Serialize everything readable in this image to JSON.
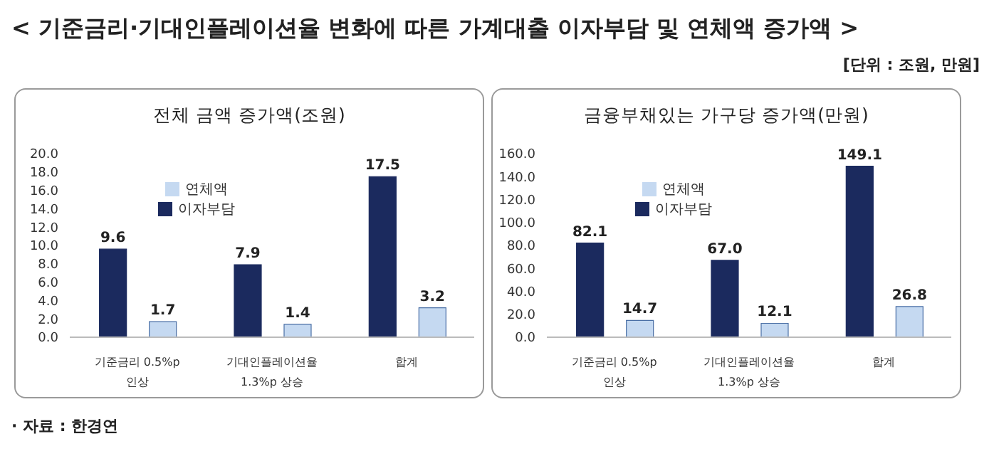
{
  "chart_data": [
    {
      "type": "bar",
      "title": "전체 금액 증가액(조원)",
      "annotations": [
        "< 기준금리·기대인플레이션율 변화에 따른 가계대출 이자부담 및 연체액 증가액 >",
        "[단위 : 조원, 만원]",
        "· 자료 : 한경연"
      ],
      "categories": [
        "기준금리 0.5%p 인상",
        "기대인플레이션율 1.3%p 상승",
        "합계"
      ],
      "series": [
        {
          "name": "이자부담",
          "color": "#1b2a5e",
          "values": [
            9.6,
            7.9,
            17.5
          ],
          "value_labels": [
            "9.6",
            "7.9",
            "17.5"
          ]
        },
        {
          "name": "연체액",
          "color": "#c5d9f1",
          "values": [
            1.7,
            1.4,
            3.2
          ],
          "value_labels": [
            "1.7",
            "1.4",
            "3.2"
          ]
        }
      ],
      "ylim": [
        0,
        20
      ],
      "yticks": [
        {
          "value": 0,
          "label": "0.0"
        },
        {
          "value": 2,
          "label": "2.0"
        },
        {
          "value": 4,
          "label": "4.0"
        },
        {
          "value": 6,
          "label": "6.0"
        },
        {
          "value": 8,
          "label": "8.0"
        },
        {
          "value": 10,
          "label": "10.0"
        },
        {
          "value": 12,
          "label": "12.0"
        },
        {
          "value": 14,
          "label": "14.0"
        },
        {
          "value": 16,
          "label": "16.0"
        },
        {
          "value": 18,
          "label": "18.0"
        },
        {
          "value": 20,
          "label": "20.0"
        }
      ],
      "grid": false,
      "legend": "top left"
    },
    {
      "type": "bar",
      "title": "금융부채있는 가구당 증가액(만원)",
      "categories": [
        "기준금리 0.5%p 인상",
        "기대인플레이션율 1.3%p 상승",
        "합계"
      ],
      "series": [
        {
          "name": "이자부담",
          "color": "#1b2a5e",
          "values": [
            82.1,
            67.0,
            149.1
          ],
          "value_labels": [
            "82.1",
            "67.0",
            "149.1"
          ]
        },
        {
          "name": "연체액",
          "color": "#c5d9f1",
          "values": [
            14.7,
            12.1,
            26.8
          ],
          "value_labels": [
            "14.7",
            "12.1",
            "26.8"
          ]
        }
      ],
      "ylim": [
        0,
        160
      ],
      "yticks": [
        {
          "value": 0,
          "label": "0.0"
        },
        {
          "value": 20,
          "label": "20.0"
        },
        {
          "value": 40,
          "label": "40.0"
        },
        {
          "value": 60,
          "label": "60.0"
        },
        {
          "value": 80,
          "label": "80.0"
        },
        {
          "value": 100,
          "label": "100.0"
        },
        {
          "value": 120,
          "label": "120.0"
        },
        {
          "value": 140,
          "label": "140.0"
        },
        {
          "value": 160,
          "label": "160.0"
        }
      ],
      "grid": false,
      "legend": "top left"
    }
  ]
}
